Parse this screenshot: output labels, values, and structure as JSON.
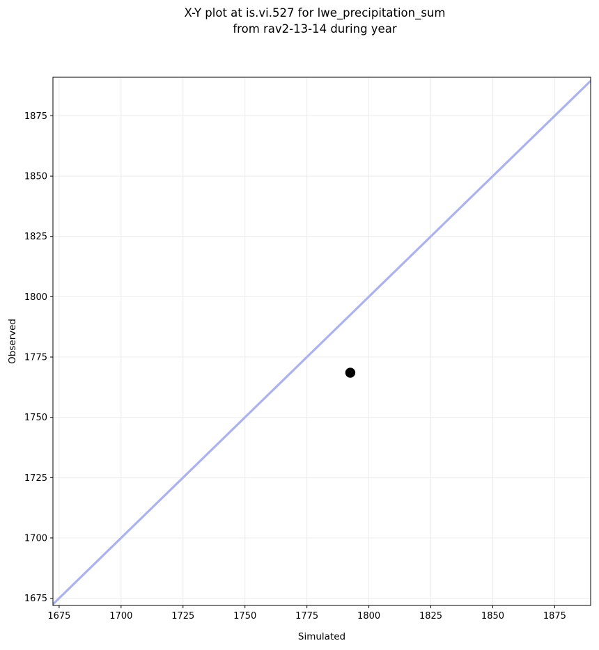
{
  "title": {
    "line1": "X-Y plot at is.vi.527 for lwe_precipitation_sum",
    "line2": "from rav2-13-14 during year"
  },
  "chart_data": {
    "type": "scatter",
    "title": "X-Y plot at is.vi.527 for lwe_precipitation_sum\nfrom rav2-13-14 during year",
    "xlabel": "Simulated",
    "ylabel": "Observed",
    "xlim": [
      1672.5,
      1889.5
    ],
    "ylim": [
      1672,
      1891
    ],
    "xticks": [
      1675,
      1700,
      1725,
      1750,
      1775,
      1800,
      1825,
      1850,
      1875
    ],
    "yticks": [
      1675,
      1700,
      1725,
      1750,
      1775,
      1800,
      1825,
      1850,
      1875
    ],
    "grid": true,
    "legend": false,
    "series": [
      {
        "name": "identity_line",
        "kind": "line",
        "points": [
          {
            "x": 1670,
            "y": 1670
          },
          {
            "x": 1893,
            "y": 1893
          }
        ],
        "color": "#aab2f2",
        "line_width": 3.2
      },
      {
        "name": "observed_vs_simulated",
        "kind": "scatter",
        "points": [
          {
            "x": 1792.5,
            "y": 1768.5
          }
        ],
        "color": "#000000",
        "marker_radius": 7.2
      }
    ],
    "colors": {
      "background": "#ffffff",
      "grid": "#ececec",
      "spine": "#000000",
      "tick": "#000000",
      "text": "#000000"
    }
  }
}
